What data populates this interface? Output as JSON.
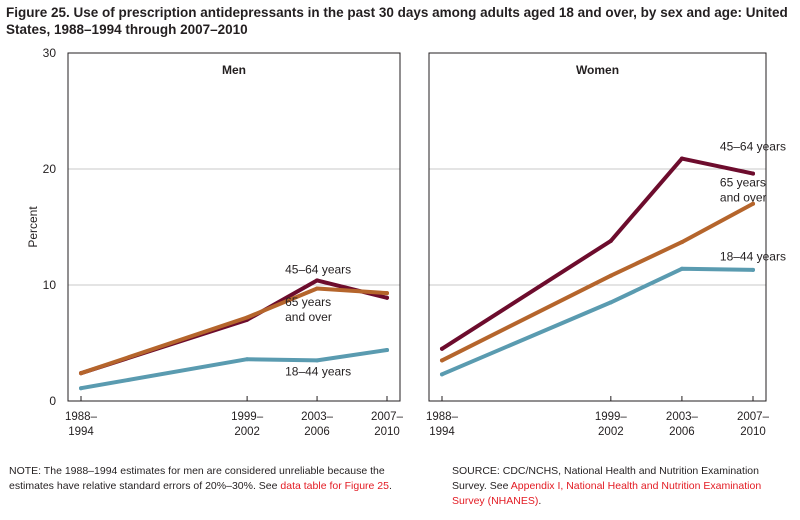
{
  "figure": {
    "title": "Figure 25. Use of prescription antidepressants in the past 30 days among adults aged 18 and over, by sex and age: United States, 1988–1994 through 2007–2010"
  },
  "chart_data": {
    "type": "line",
    "ylabel": "Percent",
    "ylim": [
      0,
      30
    ],
    "yticks": [
      0,
      10,
      20,
      30
    ],
    "gridlines": [
      10,
      20
    ],
    "categories": [
      {
        "line1": "1988–",
        "line2": "1994",
        "x": 1991
      },
      {
        "line1": "1999–",
        "line2": "2002",
        "x": 2000.5
      },
      {
        "line1": "2003–",
        "line2": "2006",
        "x": 2004.5
      },
      {
        "line1": "2007–",
        "line2": "2010",
        "x": 2008.5
      }
    ],
    "panels": [
      {
        "title": "Men",
        "series": [
          {
            "name": "45–64 years",
            "key": "45-64",
            "color": "#6d0c2d",
            "values": [
              2.4,
              7.0,
              10.4,
              8.9
            ],
            "label_lines": [
              "45–64 years"
            ],
            "label_at": [
              1,
              11.0
            ]
          },
          {
            "name": "65 years and over",
            "key": "65-over",
            "color": "#b5652c",
            "values": [
              2.4,
              7.2,
              9.7,
              9.3
            ],
            "label_lines": [
              "65 years",
              "and over"
            ],
            "label_at": [
              1,
              8.2
            ]
          },
          {
            "name": "18–44 years",
            "key": "18-44",
            "color": "#5a9bb0",
            "values": [
              1.1,
              3.6,
              3.5,
              4.4
            ],
            "label_lines": [
              "18–44 years"
            ],
            "label_at": [
              1,
              2.2
            ]
          }
        ]
      },
      {
        "title": "Women",
        "series": [
          {
            "name": "45–64 years",
            "key": "45-64",
            "color": "#6d0c2d",
            "values": [
              4.5,
              13.8,
              20.9,
              19.6
            ],
            "label_lines": [
              "45–64 years"
            ],
            "label_at": [
              2,
              21.6
            ]
          },
          {
            "name": "65 years and over",
            "key": "65-over",
            "color": "#b5652c",
            "values": [
              3.5,
              10.8,
              13.7,
              17.0
            ],
            "label_lines": [
              "65 years",
              "and over"
            ],
            "label_at": [
              2,
              18.5
            ]
          },
          {
            "name": "18–44 years",
            "key": "18-44",
            "color": "#5a9bb0",
            "values": [
              2.3,
              8.5,
              11.4,
              11.3
            ],
            "label_lines": [
              "18–44 years"
            ],
            "label_at": [
              2,
              12.1
            ]
          }
        ]
      }
    ]
  },
  "notes": {
    "left_text": "NOTE: The 1988–1994 estimates for men are considered unreliable because the estimates have relative standard errors of 20%–30%. See ",
    "left_link": "data table for Figure 25",
    "left_end": ".",
    "right_text": "SOURCE: CDC/NCHS, National Health and Nutrition Examination Survey. See ",
    "right_link": "Appendix I, National Health and Nutrition Examination Survey (NHANES)",
    "right_end": "."
  }
}
